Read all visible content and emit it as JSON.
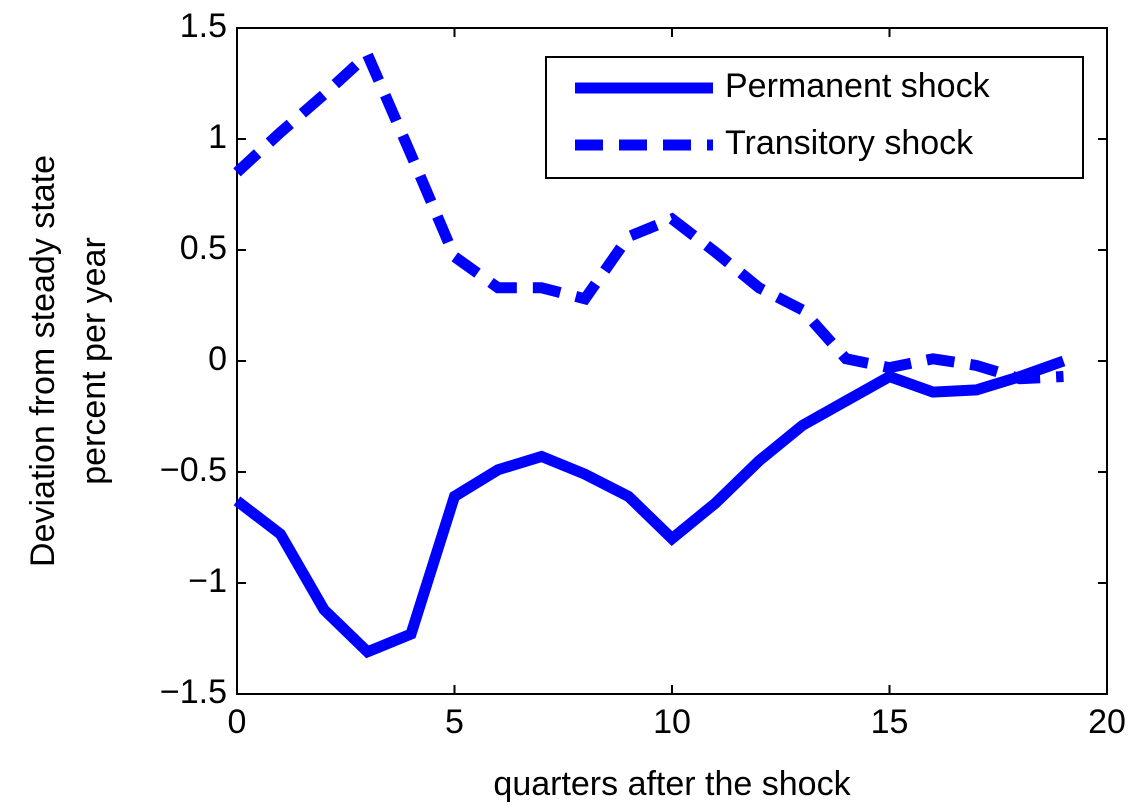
{
  "chart_data": {
    "type": "line",
    "x_label": "quarters after the shock",
    "y_label": [
      "Deviation from steady state",
      "percent per year"
    ],
    "x": [
      0,
      1,
      2,
      3,
      4,
      5,
      6,
      7,
      8,
      9,
      10,
      11,
      12,
      13,
      14,
      15,
      16,
      17,
      18,
      19
    ],
    "series": [
      {
        "name": "Permanent shock",
        "color": "#0000ff",
        "style": "solid",
        "values": [
          -0.63,
          -0.78,
          -1.12,
          -1.31,
          -1.23,
          -0.61,
          -0.49,
          -0.43,
          -0.51,
          -0.61,
          -0.8,
          -0.64,
          -0.45,
          -0.29,
          -0.18,
          -0.07,
          -0.14,
          -0.13,
          -0.07,
          0.0
        ]
      },
      {
        "name": "Transitory shock",
        "color": "#0000ff",
        "style": "dashed",
        "values": [
          0.85,
          1.03,
          1.2,
          1.38,
          0.93,
          0.47,
          0.33,
          0.33,
          0.28,
          0.56,
          0.64,
          0.49,
          0.33,
          0.23,
          0.01,
          -0.03,
          0.01,
          -0.02,
          -0.08,
          -0.07
        ]
      }
    ],
    "xlim": [
      0,
      20
    ],
    "xticks": [
      0,
      5,
      10,
      15,
      20
    ],
    "ylim": [
      -1.5,
      1.5
    ],
    "yticks": [
      {
        "value": -1.5,
        "label": "−1.5"
      },
      {
        "value": -1,
        "label": "−1"
      },
      {
        "value": -0.5,
        "label": "−0.5"
      },
      0,
      0.5,
      1,
      1.5
    ],
    "legend": "top-right",
    "grid": false
  }
}
